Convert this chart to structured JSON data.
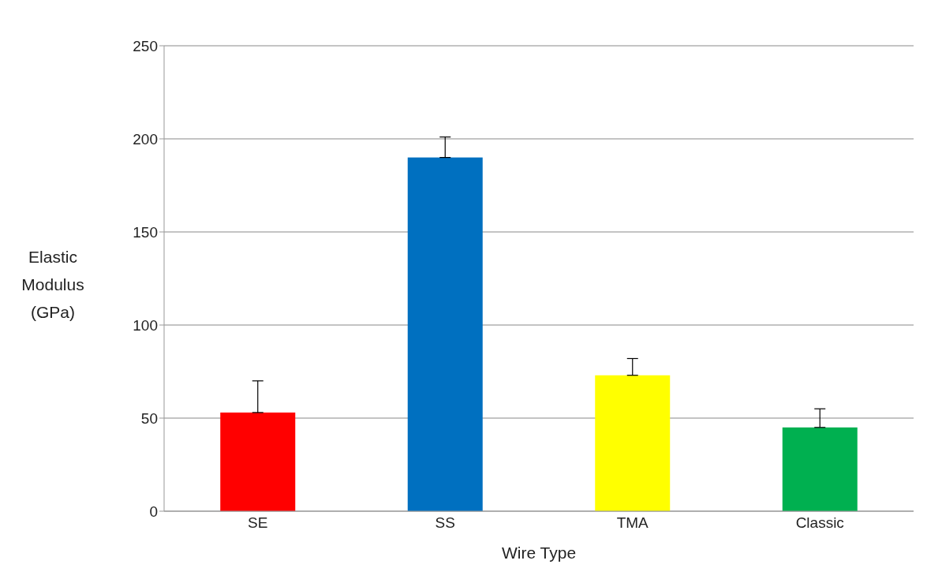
{
  "chart_data": {
    "type": "bar",
    "xlabel": "Wire Type",
    "ylabel": "Elastic Modulus (GPa)",
    "categories": [
      "SE",
      "SS",
      "TMA",
      "Classic"
    ],
    "values": [
      53,
      190,
      73,
      45
    ],
    "colors": [
      "#ff0000",
      "#0070c0",
      "#ffff00",
      "#00b050"
    ],
    "errors": [
      [
        53,
        70
      ],
      [
        190,
        201
      ],
      [
        73,
        82
      ],
      [
        45,
        55
      ]
    ],
    "ylim": [
      0,
      250
    ],
    "yticks": [
      0,
      50,
      100,
      150,
      200,
      250
    ],
    "grid": "y"
  }
}
